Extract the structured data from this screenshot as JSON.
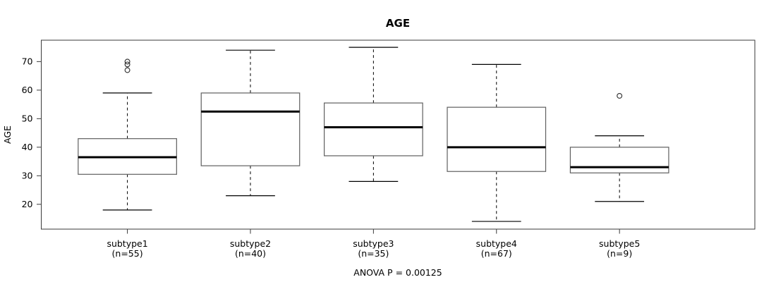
{
  "chart_data": {
    "type": "boxplot",
    "title": "AGE",
    "ylabel": "AGE",
    "xlabel": "",
    "annotation": "ANOVA P = 0.00125",
    "ylim": [
      11.3,
      77.5
    ],
    "yticks": [
      20,
      30,
      40,
      50,
      60,
      70
    ],
    "grid": false,
    "legend": "none",
    "categories": [
      {
        "label": "subtype1",
        "sublabel": "(n=55)",
        "n": 55
      },
      {
        "label": "subtype2",
        "sublabel": "(n=40)",
        "n": 40
      },
      {
        "label": "subtype3",
        "sublabel": "(n=35)",
        "n": 35
      },
      {
        "label": "subtype4",
        "sublabel": "(n=67)",
        "n": 67
      },
      {
        "label": "subtype5",
        "sublabel": "(n=9)",
        "n": 9
      }
    ],
    "series": [
      {
        "name": "subtype1",
        "whisker_low": 18,
        "q1": 30.5,
        "median": 36.5,
        "q3": 43,
        "whisker_high": 59,
        "outliers": [
          67,
          69,
          70
        ]
      },
      {
        "name": "subtype2",
        "whisker_low": 23,
        "q1": 33.5,
        "median": 52.5,
        "q3": 59,
        "whisker_high": 74,
        "outliers": []
      },
      {
        "name": "subtype3",
        "whisker_low": 28,
        "q1": 37,
        "median": 47,
        "q3": 55.5,
        "whisker_high": 75,
        "outliers": []
      },
      {
        "name": "subtype4",
        "whisker_low": 14,
        "q1": 31.5,
        "median": 40,
        "q3": 54,
        "whisker_high": 69,
        "outliers": []
      },
      {
        "name": "subtype5",
        "whisker_low": 21,
        "q1": 31,
        "median": 33,
        "q3": 40,
        "whisker_high": 44,
        "outliers": [
          58
        ]
      }
    ],
    "colors": {
      "background": "#ffffff",
      "plot_border": "#3a3a3a",
      "box_border": "#5f5f5f",
      "box_fill": "#ffffff",
      "median": "#000000",
      "whisker": "#000000",
      "outlier": "#2b2b2b",
      "text": "#000000"
    }
  }
}
